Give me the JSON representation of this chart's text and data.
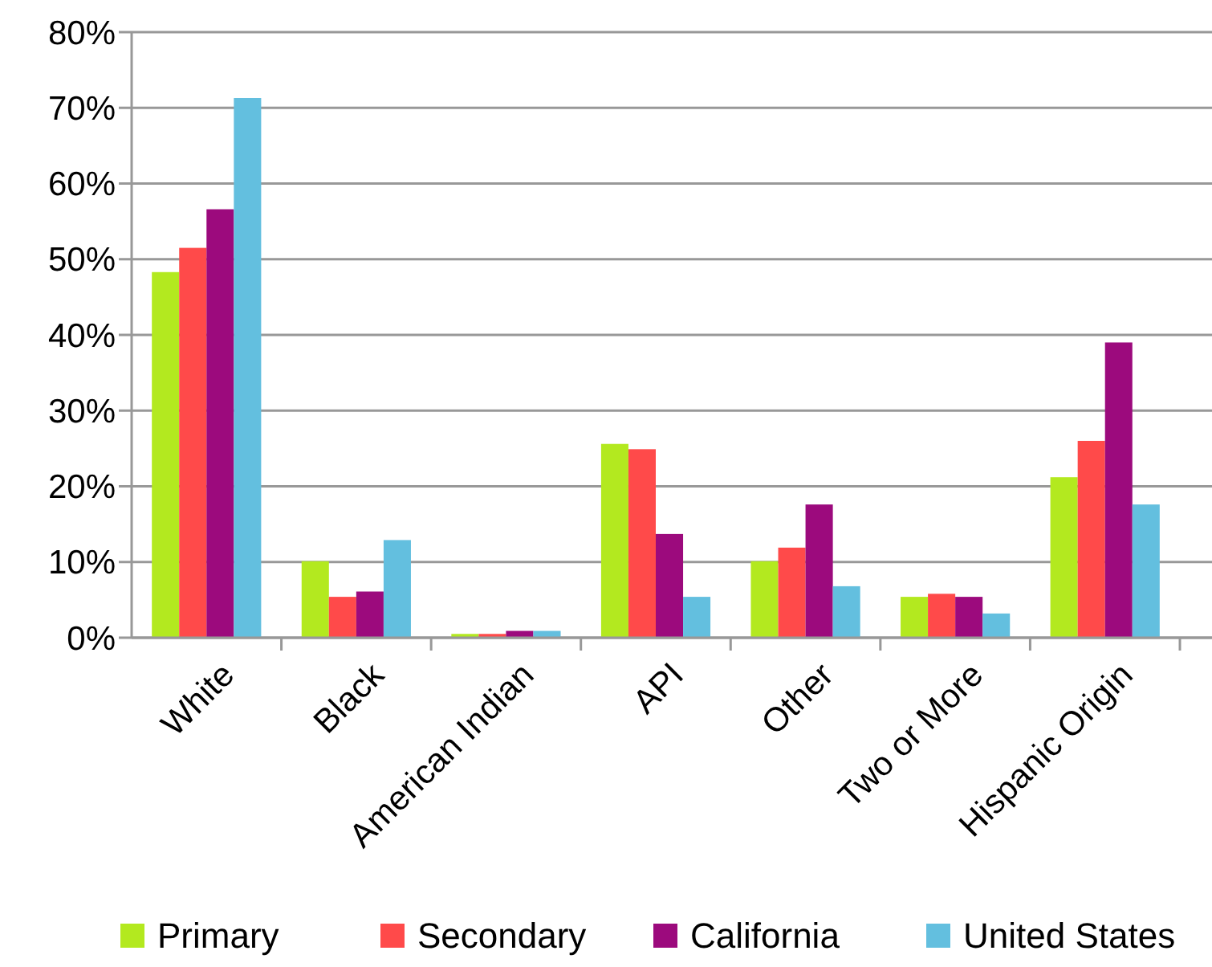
{
  "chart_data": {
    "type": "bar",
    "categories": [
      "White",
      "Black",
      "American Indian",
      "API",
      "Other",
      "Two or More",
      "Hispanic Origin"
    ],
    "series": [
      {
        "name": "Primary",
        "color": "#b3e91f",
        "values": [
          48.3,
          10.1,
          0.5,
          25.6,
          10.1,
          5.4,
          21.2
        ]
      },
      {
        "name": "Secondary",
        "color": "#ff4a4a",
        "values": [
          51.5,
          5.4,
          0.5,
          24.9,
          11.9,
          5.8,
          26.0
        ]
      },
      {
        "name": "California",
        "color": "#9c0a7d",
        "values": [
          56.6,
          6.1,
          0.9,
          13.7,
          17.6,
          5.4,
          39.0
        ]
      },
      {
        "name": "United States",
        "color": "#63bfdf",
        "values": [
          71.3,
          12.9,
          0.9,
          5.4,
          6.8,
          3.2,
          17.6
        ]
      }
    ],
    "ylim": [
      0,
      80
    ],
    "yticks": [
      {
        "value": 0,
        "label": "0%"
      },
      {
        "value": 10,
        "label": "10%"
      },
      {
        "value": 20,
        "label": "20%"
      },
      {
        "value": 30,
        "label": "30%"
      },
      {
        "value": 40,
        "label": "40%"
      },
      {
        "value": 50,
        "label": "50%"
      },
      {
        "value": 60,
        "label": "60%"
      },
      {
        "value": 70,
        "label": "70%"
      },
      {
        "value": 80,
        "label": "80%"
      }
    ],
    "grid": "y",
    "legend": "bottom"
  }
}
